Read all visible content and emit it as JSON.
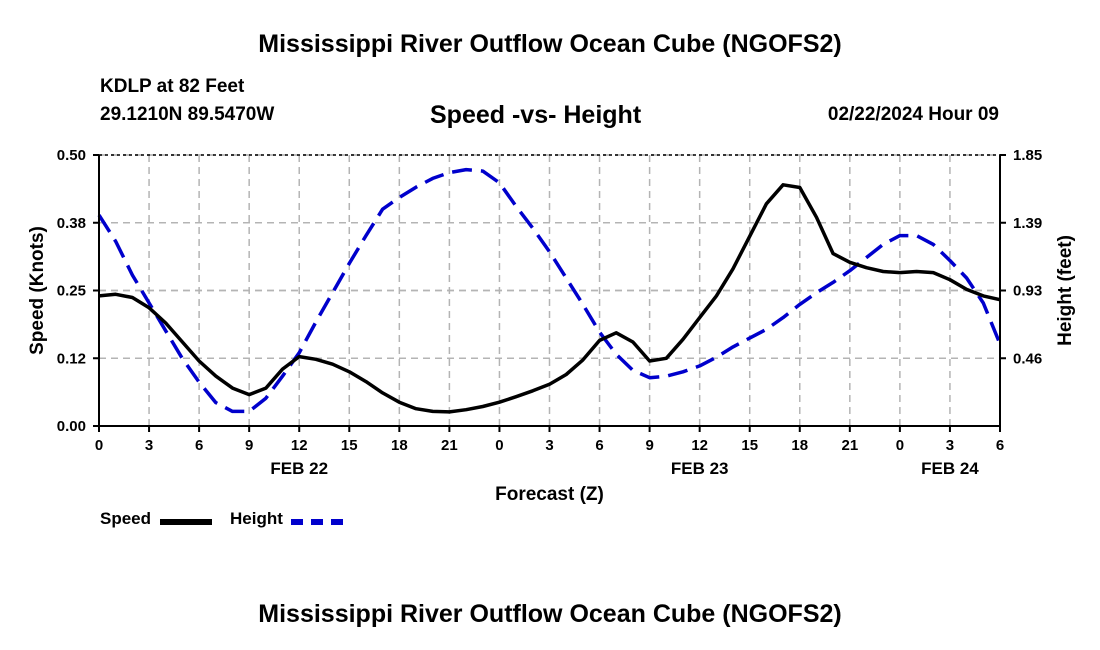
{
  "header": {
    "title": "Mississippi River Outflow Ocean Cube (NGOFS2)",
    "station": "KDLP at 82 Feet",
    "coordinates": "29.1210N  89.5470W",
    "subtitle": "Speed -vs- Height",
    "datetime": "02/22/2024 Hour 09"
  },
  "footer": {
    "title": "Mississippi River Outflow Ocean Cube (NGOFS2)"
  },
  "legend": {
    "speed_label": "Speed",
    "height_label": "Height"
  },
  "colors": {
    "speed": "#000000",
    "height": "#0000cc",
    "grid": "#b4b4b4"
  },
  "chart_data": {
    "type": "line",
    "title": "Speed -vs- Height",
    "xlabel": "Forecast (Z)",
    "ylabel": "Speed (Knots)",
    "y2label": "Height (feet)",
    "x_ticks": [
      0,
      3,
      6,
      9,
      12,
      15,
      18,
      21,
      24,
      27,
      30,
      33,
      36,
      39,
      42,
      45,
      48,
      51,
      54
    ],
    "x_tick_labels": [
      "0",
      "3",
      "6",
      "9",
      "12",
      "15",
      "18",
      "21",
      "0",
      "3",
      "6",
      "9",
      "12",
      "15",
      "18",
      "21",
      "0",
      "3",
      "6"
    ],
    "date_labels": [
      {
        "x": 12,
        "label": "FEB 22"
      },
      {
        "x": 36,
        "label": "FEB 23"
      },
      {
        "x": 51,
        "label": "FEB 24"
      }
    ],
    "xlim": [
      0,
      54
    ],
    "ylim": [
      0,
      0.5
    ],
    "y_ticks": [
      0,
      0.125,
      0.25,
      0.375,
      0.5
    ],
    "y_tick_labels": [
      "0.00",
      "0.12",
      "0.25",
      "0.38",
      "0.50"
    ],
    "y2lim": [
      0,
      1.85
    ],
    "y2_ticks": [
      0.4625,
      0.925,
      1.3875,
      1.85
    ],
    "y2_tick_labels": [
      "0.46",
      "0.93",
      "1.39",
      "1.85"
    ],
    "series": [
      {
        "name": "Speed",
        "axis": "left",
        "x": [
          0,
          1,
          2,
          3,
          4,
          5,
          6,
          7,
          8,
          9,
          10,
          11,
          12,
          13,
          14,
          15,
          16,
          17,
          18,
          19,
          20,
          21,
          22,
          23,
          24,
          25,
          26,
          27,
          28,
          29,
          30,
          31,
          32,
          33,
          34,
          35,
          36,
          37,
          38,
          39,
          40,
          41,
          42,
          43,
          44,
          45,
          46,
          47,
          48,
          49,
          50,
          51,
          52,
          53,
          54
        ],
        "values": [
          0.24,
          0.243,
          0.237,
          0.218,
          0.19,
          0.155,
          0.12,
          0.092,
          0.07,
          0.058,
          0.07,
          0.105,
          0.128,
          0.123,
          0.114,
          0.1,
          0.082,
          0.061,
          0.044,
          0.032,
          0.027,
          0.026,
          0.03,
          0.036,
          0.044,
          0.054,
          0.065,
          0.077,
          0.095,
          0.122,
          0.158,
          0.172,
          0.155,
          0.12,
          0.125,
          0.16,
          0.2,
          0.24,
          0.29,
          0.35,
          0.41,
          0.445,
          0.44,
          0.385,
          0.318,
          0.302,
          0.292,
          0.285,
          0.283,
          0.285,
          0.283,
          0.27,
          0.252,
          0.24,
          0.233
        ]
      },
      {
        "name": "Height",
        "axis": "right",
        "x": [
          0,
          1,
          2,
          3,
          4,
          5,
          6,
          7,
          8,
          9,
          10,
          11,
          12,
          13,
          14,
          15,
          16,
          17,
          18,
          19,
          20,
          21,
          22,
          23,
          24,
          25,
          26,
          27,
          28,
          29,
          30,
          31,
          32,
          33,
          34,
          35,
          36,
          37,
          38,
          39,
          40,
          41,
          42,
          43,
          44,
          45,
          46,
          47,
          48,
          49,
          50,
          51,
          52,
          53,
          54
        ],
        "values": [
          1.44,
          1.26,
          1.03,
          0.84,
          0.65,
          0.46,
          0.3,
          0.16,
          0.1,
          0.1,
          0.19,
          0.34,
          0.5,
          0.71,
          0.91,
          1.11,
          1.3,
          1.48,
          1.56,
          1.63,
          1.69,
          1.73,
          1.75,
          1.74,
          1.66,
          1.5,
          1.35,
          1.19,
          1.01,
          0.83,
          0.64,
          0.49,
          0.38,
          0.33,
          0.34,
          0.37,
          0.41,
          0.47,
          0.54,
          0.6,
          0.66,
          0.74,
          0.83,
          0.91,
          0.98,
          1.06,
          1.15,
          1.24,
          1.3,
          1.3,
          1.24,
          1.13,
          1.01,
          0.84,
          0.56
        ]
      }
    ]
  }
}
